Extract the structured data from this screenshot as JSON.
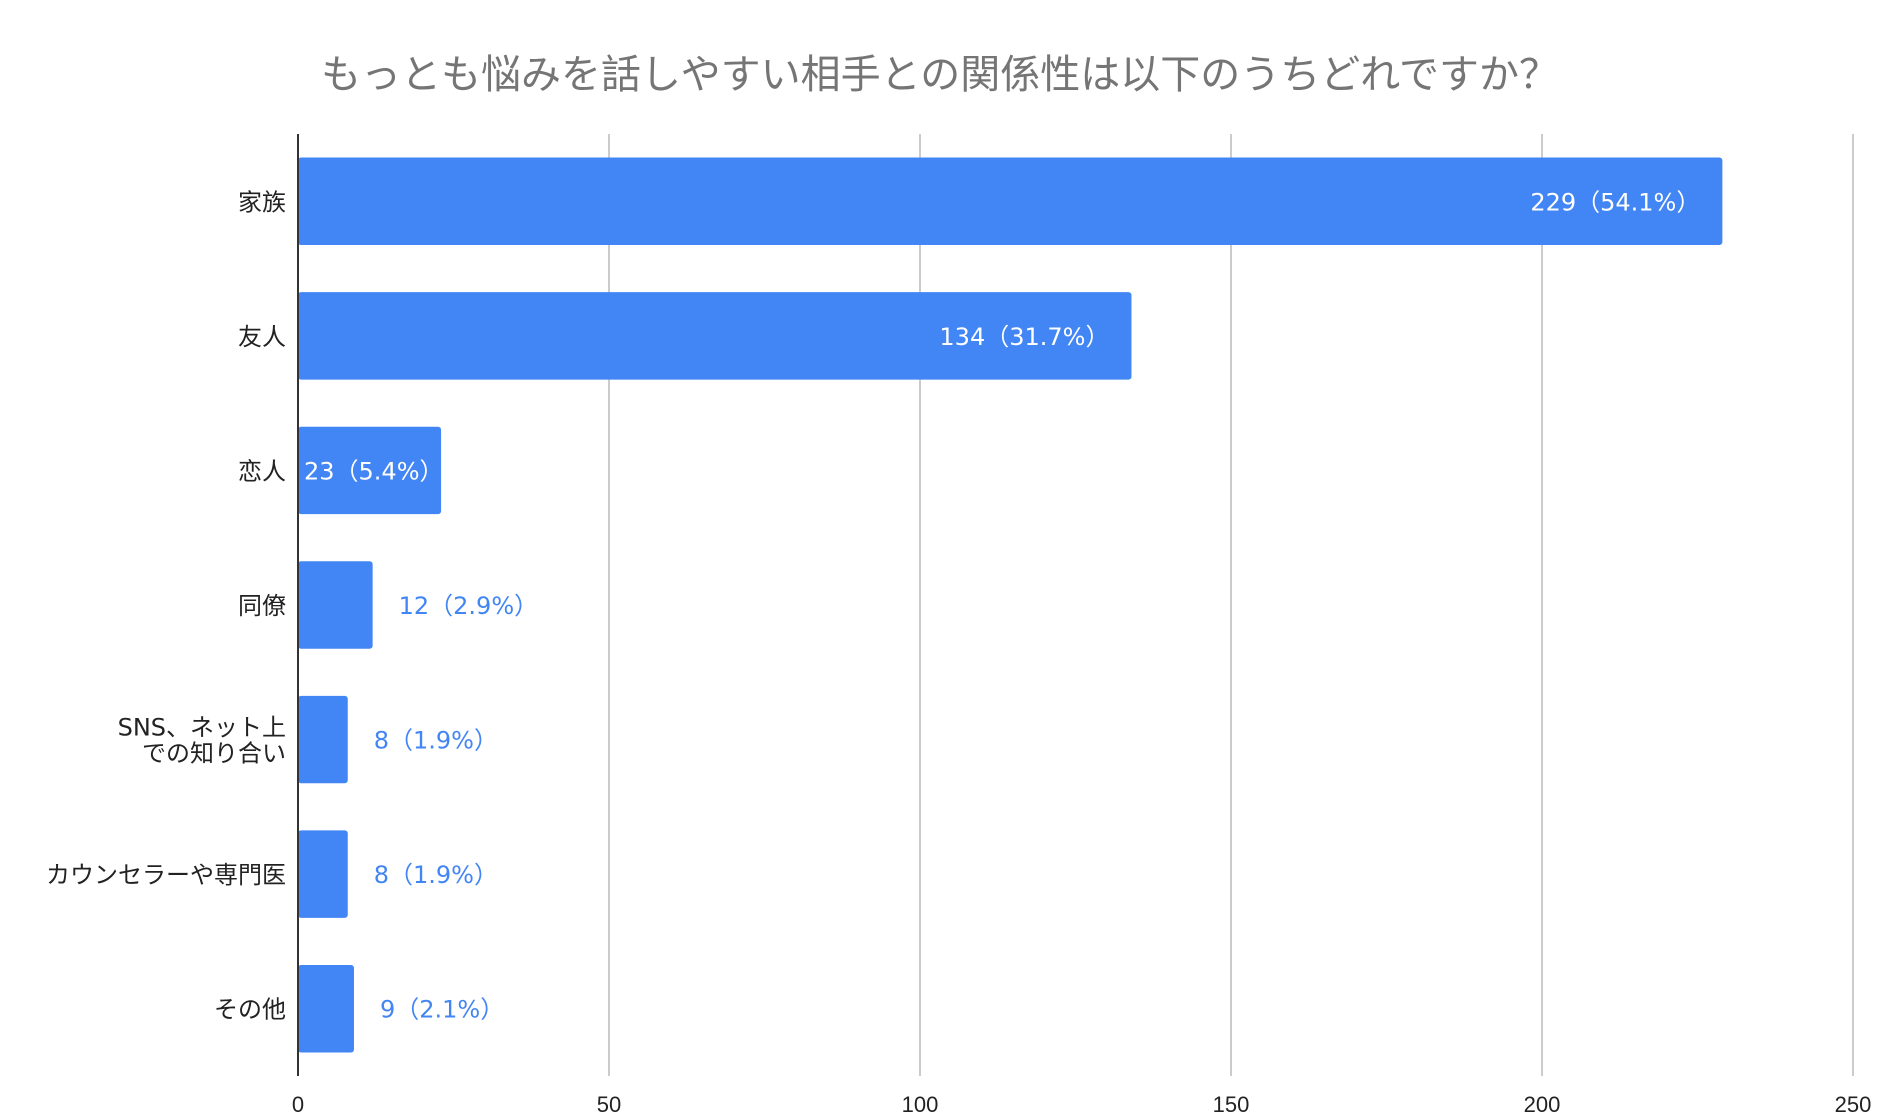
{
  "chart_data": {
    "type": "bar",
    "orientation": "horizontal",
    "title": "もっとも悩みを話しやすい相手との関係性は以下のうちどれですか？",
    "categories": [
      [
        "家族"
      ],
      [
        "友人"
      ],
      [
        "恋人"
      ],
      [
        "同僚"
      ],
      [
        "SNS、ネット上",
        "での知り合い"
      ],
      [
        "カウンセラーや専門医"
      ],
      [
        "その他"
      ]
    ],
    "values": [
      229,
      134,
      23,
      12,
      8,
      8,
      9
    ],
    "data_labels": [
      "229（54.1%）",
      "134（31.7%）",
      "23（5.4%）",
      "12（2.9%）",
      "8（1.9%）",
      "8（1.9%）",
      "9（2.1%）"
    ],
    "xlim": [
      0,
      250
    ],
    "xticks": [
      0,
      50,
      100,
      150,
      200,
      250
    ],
    "grid": true,
    "legend": "none",
    "bar_color": "#4285f4",
    "label_color_inside": "#ffffff",
    "label_color_outside": "#4285f4"
  }
}
